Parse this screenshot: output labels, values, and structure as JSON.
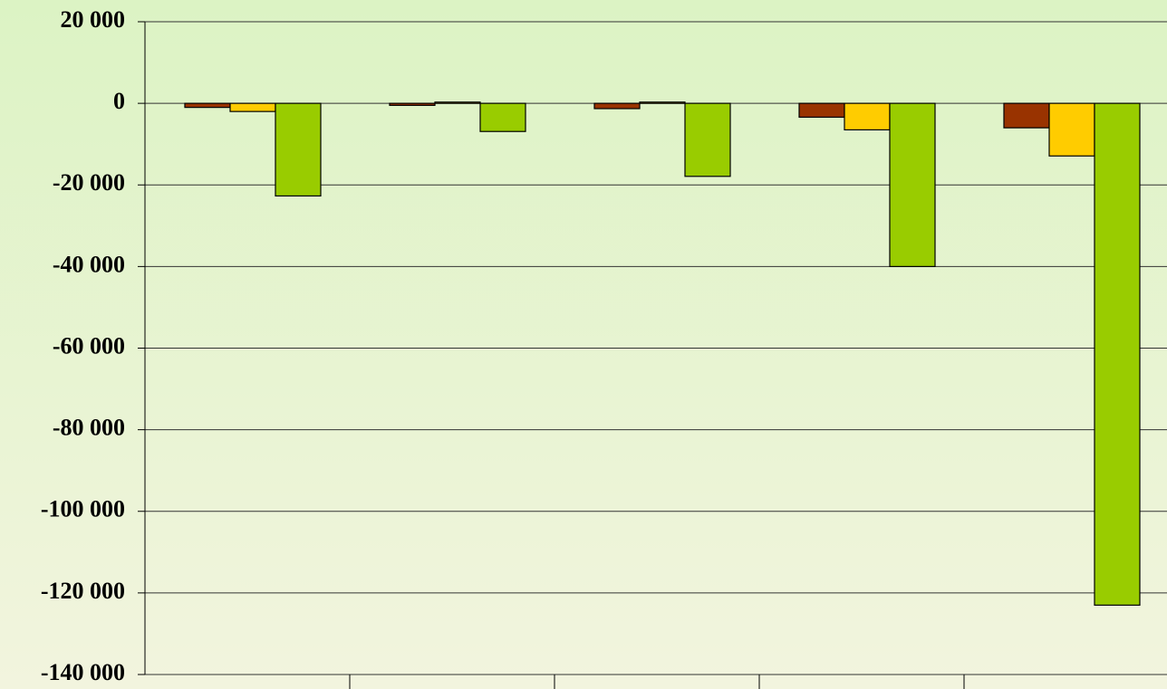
{
  "chart_data": {
    "type": "bar",
    "categories": [
      null,
      null,
      null,
      null,
      null
    ],
    "series": [
      {
        "color": "#993300",
        "values": [
          -1000,
          -500,
          -1300,
          -3400,
          -6000
        ]
      },
      {
        "color": "#ffcc00",
        "values": [
          -2000,
          300,
          300,
          -6500,
          -12900
        ]
      },
      {
        "color": "#99cc00",
        "values": [
          -22700,
          -6900,
          -17900,
          -40000,
          -123000
        ]
      }
    ],
    "ylim": [
      -140000,
      20000
    ],
    "yticks": [
      {
        "value": 20000,
        "label": "20 000"
      },
      0,
      {
        "value": -20000,
        "label": "-20 000"
      },
      {
        "value": -40000,
        "label": "-40 000"
      },
      {
        "value": -60000,
        "label": "-60 000"
      },
      {
        "value": -80000,
        "label": "-80 000"
      },
      {
        "value": -100000,
        "label": "-100 000"
      },
      {
        "value": -120000,
        "label": "-120 000"
      },
      {
        "value": -140000,
        "label": "-140 000"
      }
    ],
    "grid": true
  }
}
